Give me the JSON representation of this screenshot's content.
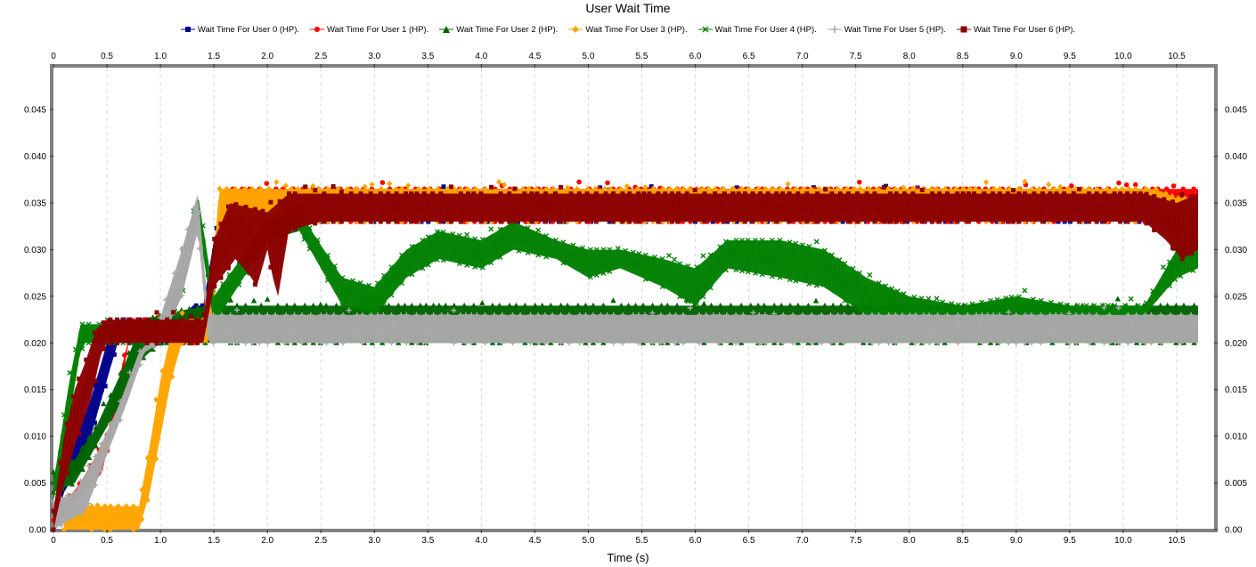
{
  "chart_data": {
    "type": "line",
    "title": "User Wait Time",
    "xlabel": "Time (s)",
    "ylabel": "",
    "xlim": [
      0,
      10.85
    ],
    "ylim": [
      0,
      0.0495
    ],
    "x_ticks": [
      "0",
      "0.5",
      "1.0",
      "1.5",
      "2.0",
      "2.5",
      "3.0",
      "3.5",
      "4.0",
      "4.5",
      "5.0",
      "5.5",
      "6.0",
      "6.5",
      "7.0",
      "7.5",
      "8.0",
      "8.5",
      "9.0",
      "9.5",
      "10.0",
      "10.5"
    ],
    "x_tick_values": [
      0,
      0.5,
      1.0,
      1.5,
      2.0,
      2.5,
      3.0,
      3.5,
      4.0,
      4.5,
      5.0,
      5.5,
      6.0,
      6.5,
      7.0,
      7.5,
      8.0,
      8.5,
      9.0,
      9.5,
      10.0,
      10.5
    ],
    "y_ticks": [
      "0.00",
      "0.005",
      "0.010",
      "0.015",
      "0.020",
      "0.025",
      "0.030",
      "0.035",
      "0.040",
      "0.045"
    ],
    "y_tick_values": [
      0,
      0.005,
      0.01,
      0.015,
      0.02,
      0.025,
      0.03,
      0.035,
      0.04,
      0.045
    ],
    "grid": "vertical dashed",
    "legend_position": "top",
    "series": [
      {
        "name": "Wait Time For User 0 (HP).",
        "color": "#00008B",
        "marker": "square",
        "lower": [
          [
            0,
            0
          ],
          [
            0.1,
            0.004
          ],
          [
            0.3,
            0.008
          ],
          [
            0.5,
            0.016
          ],
          [
            0.6,
            0.02
          ],
          [
            1.2,
            0.02
          ],
          [
            1.35,
            0.021
          ],
          [
            1.45,
            0.025
          ],
          [
            1.6,
            0.033
          ],
          [
            10.7,
            0.033
          ]
        ],
        "upper": [
          [
            0,
            0.002
          ],
          [
            0.15,
            0.008
          ],
          [
            0.35,
            0.014
          ],
          [
            0.5,
            0.02
          ],
          [
            0.6,
            0.0225
          ],
          [
            1.2,
            0.0225
          ],
          [
            1.3,
            0.024
          ],
          [
            1.4,
            0.024
          ],
          [
            1.5,
            0.031
          ],
          [
            1.6,
            0.036
          ],
          [
            10.7,
            0.036
          ]
        ]
      },
      {
        "name": "Wait Time For User 1 (HP).",
        "color": "#FF0000",
        "marker": "circle",
        "lower": [
          [
            0,
            0
          ],
          [
            0.2,
            0.003
          ],
          [
            0.45,
            0.006
          ],
          [
            0.6,
            0.013
          ],
          [
            0.7,
            0.02
          ],
          [
            1.4,
            0.02
          ],
          [
            1.6,
            0.033
          ],
          [
            10.7,
            0.033
          ]
        ],
        "upper": [
          [
            0,
            0.001
          ],
          [
            0.25,
            0.005
          ],
          [
            0.5,
            0.01
          ],
          [
            0.65,
            0.018
          ],
          [
            0.75,
            0.0225
          ],
          [
            1.4,
            0.0225
          ],
          [
            1.6,
            0.0365
          ],
          [
            10.7,
            0.0365
          ]
        ]
      },
      {
        "name": "Wait Time For User 2 (HP).",
        "color": "#006400",
        "marker": "triangle",
        "lower": [
          [
            0,
            0.004
          ],
          [
            0.2,
            0.005
          ],
          [
            0.4,
            0.009
          ],
          [
            0.6,
            0.013
          ],
          [
            0.8,
            0.018
          ],
          [
            1.0,
            0.02
          ],
          [
            10.7,
            0.02
          ]
        ],
        "upper": [
          [
            0,
            0.006
          ],
          [
            0.2,
            0.0075
          ],
          [
            0.4,
            0.011
          ],
          [
            0.6,
            0.016
          ],
          [
            0.75,
            0.02
          ],
          [
            0.85,
            0.0225
          ],
          [
            1.2,
            0.0235
          ],
          [
            1.45,
            0.024
          ],
          [
            10.7,
            0.024
          ]
        ]
      },
      {
        "name": "Wait Time For User 3 (HP).",
        "color": "#FFA500",
        "marker": "diamond",
        "lower": [
          [
            0.1,
            0
          ],
          [
            0.8,
            0
          ],
          [
            0.9,
            0.004
          ],
          [
            1.0,
            0.01
          ],
          [
            1.1,
            0.016
          ],
          [
            1.2,
            0.02
          ],
          [
            1.45,
            0.02
          ],
          [
            1.6,
            0.033
          ],
          [
            10.3,
            0.033
          ],
          [
            10.5,
            0.03
          ],
          [
            10.7,
            0.03
          ]
        ],
        "upper": [
          [
            0.1,
            0.0025
          ],
          [
            0.8,
            0.0025
          ],
          [
            0.9,
            0.009
          ],
          [
            1.0,
            0.016
          ],
          [
            1.1,
            0.021
          ],
          [
            1.2,
            0.0225
          ],
          [
            1.45,
            0.0225
          ],
          [
            1.55,
            0.0365
          ],
          [
            10.3,
            0.0365
          ],
          [
            10.5,
            0.0355
          ],
          [
            10.7,
            0.0355
          ]
        ]
      },
      {
        "name": "Wait Time For User 4 (HP).",
        "color": "#008000",
        "marker": "x",
        "lower": [
          [
            0,
            0.003
          ],
          [
            0.15,
            0.012
          ],
          [
            0.25,
            0.019
          ],
          [
            0.3,
            0.02
          ],
          [
            1.0,
            0.02
          ],
          [
            1.2,
            0.025
          ],
          [
            1.35,
            0.033
          ],
          [
            1.5,
            0.022
          ],
          [
            2.0,
            0.031
          ],
          [
            2.3,
            0.032
          ],
          [
            2.7,
            0.024
          ],
          [
            3.0,
            0.023
          ],
          [
            3.3,
            0.027
          ],
          [
            3.6,
            0.029
          ],
          [
            4.0,
            0.028
          ],
          [
            4.3,
            0.03
          ],
          [
            4.7,
            0.029
          ],
          [
            5.0,
            0.027
          ],
          [
            5.3,
            0.028
          ],
          [
            5.7,
            0.026
          ],
          [
            6.0,
            0.024
          ],
          [
            6.3,
            0.028
          ],
          [
            6.8,
            0.027
          ],
          [
            7.2,
            0.026
          ],
          [
            7.6,
            0.023
          ],
          [
            8.0,
            0.023
          ],
          [
            8.5,
            0.022
          ],
          [
            9.0,
            0.023
          ],
          [
            9.5,
            0.022
          ],
          [
            10.0,
            0.023
          ],
          [
            10.2,
            0.023
          ],
          [
            10.5,
            0.027
          ],
          [
            10.7,
            0.028
          ]
        ],
        "upper": [
          [
            0,
            0.005
          ],
          [
            0.15,
            0.016
          ],
          [
            0.22,
            0.02
          ],
          [
            0.25,
            0.022
          ],
          [
            1.0,
            0.022
          ],
          [
            1.2,
            0.029
          ],
          [
            1.35,
            0.036
          ],
          [
            1.5,
            0.025
          ],
          [
            2.0,
            0.033
          ],
          [
            2.3,
            0.034
          ],
          [
            2.7,
            0.027
          ],
          [
            3.0,
            0.026
          ],
          [
            3.3,
            0.03
          ],
          [
            3.6,
            0.032
          ],
          [
            4.0,
            0.031
          ],
          [
            4.3,
            0.033
          ],
          [
            4.7,
            0.031
          ],
          [
            5.0,
            0.03
          ],
          [
            5.3,
            0.03
          ],
          [
            5.7,
            0.029
          ],
          [
            6.0,
            0.028
          ],
          [
            6.3,
            0.031
          ],
          [
            6.8,
            0.031
          ],
          [
            7.2,
            0.03
          ],
          [
            7.6,
            0.027
          ],
          [
            8.0,
            0.025
          ],
          [
            8.5,
            0.024
          ],
          [
            9.0,
            0.025
          ],
          [
            9.5,
            0.024
          ],
          [
            10.0,
            0.024
          ],
          [
            10.2,
            0.024
          ],
          [
            10.5,
            0.03
          ],
          [
            10.7,
            0.031
          ]
        ]
      },
      {
        "name": "Wait Time For User 5 (HP).",
        "color": "#A9A9A9",
        "marker": "cross",
        "lower": [
          [
            0,
            0
          ],
          [
            0.3,
            0.002
          ],
          [
            0.5,
            0.008
          ],
          [
            0.7,
            0.014
          ],
          [
            0.85,
            0.019
          ],
          [
            1.0,
            0.02
          ],
          [
            1.2,
            0.025
          ],
          [
            1.35,
            0.032
          ],
          [
            1.45,
            0.02
          ],
          [
            10.7,
            0.02
          ]
        ],
        "upper": [
          [
            0,
            0.003
          ],
          [
            0.2,
            0.004
          ],
          [
            0.4,
            0.008
          ],
          [
            0.6,
            0.013
          ],
          [
            0.8,
            0.019
          ],
          [
            0.95,
            0.021
          ],
          [
            1.2,
            0.03
          ],
          [
            1.35,
            0.036
          ],
          [
            1.45,
            0.023
          ],
          [
            10.7,
            0.023
          ]
        ]
      },
      {
        "name": "Wait Time For User 6 (HP).",
        "color": "#8B0000",
        "marker": "square",
        "lower": [
          [
            0,
            0
          ],
          [
            0.1,
            0.005
          ],
          [
            0.2,
            0.009
          ],
          [
            0.35,
            0.014
          ],
          [
            0.45,
            0.019
          ],
          [
            0.5,
            0.02
          ],
          [
            1.4,
            0.02
          ],
          [
            1.5,
            0.026
          ],
          [
            1.7,
            0.029
          ],
          [
            1.85,
            0.027
          ],
          [
            1.9,
            0.026
          ],
          [
            2.0,
            0.03
          ],
          [
            2.05,
            0.027
          ],
          [
            2.1,
            0.025
          ],
          [
            2.2,
            0.032
          ],
          [
            2.5,
            0.033
          ],
          [
            10.2,
            0.033
          ],
          [
            10.4,
            0.031
          ],
          [
            10.55,
            0.029
          ],
          [
            10.7,
            0.03
          ]
        ],
        "upper": [
          [
            0,
            0.002
          ],
          [
            0.1,
            0.01
          ],
          [
            0.2,
            0.015
          ],
          [
            0.3,
            0.018
          ],
          [
            0.4,
            0.0215
          ],
          [
            0.5,
            0.0225
          ],
          [
            1.4,
            0.0225
          ],
          [
            1.5,
            0.031
          ],
          [
            1.65,
            0.035
          ],
          [
            2.0,
            0.034
          ],
          [
            2.2,
            0.036
          ],
          [
            10.2,
            0.036
          ],
          [
            10.5,
            0.035
          ],
          [
            10.7,
            0.036
          ]
        ]
      }
    ]
  }
}
